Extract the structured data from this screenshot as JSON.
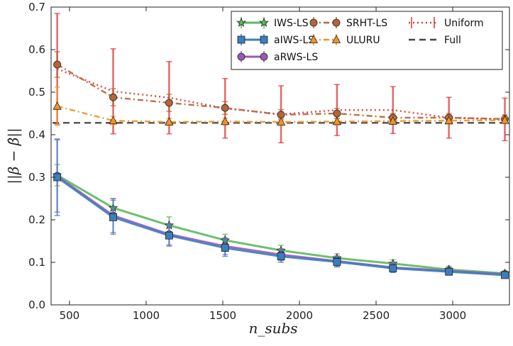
{
  "chart_data": {
    "type": "line",
    "xlabel": "n_subs",
    "ylabel": "||β − β̂||",
    "xlim": [
      380,
      3370
    ],
    "ylim": [
      0,
      0.7
    ],
    "xticks": [
      500,
      1000,
      1500,
      2000,
      2500,
      3000
    ],
    "yticks": [
      0.0,
      0.1,
      0.2,
      0.3,
      0.4,
      0.5,
      0.6,
      0.7
    ],
    "x": [
      420,
      785,
      1150,
      1515,
      1880,
      2245,
      2610,
      2975,
      3340
    ],
    "legend_position": "top-right",
    "series": [
      {
        "name": "IWS-LS",
        "color": "#5cb85c",
        "linestyle": "solid",
        "marker": "star",
        "values": [
          0.305,
          0.228,
          0.187,
          0.152,
          0.128,
          0.11,
          0.097,
          0.083,
          0.074
        ],
        "errors": [
          0.025,
          0.022,
          0.02,
          0.014,
          0.012,
          0.01,
          0.009,
          0.008,
          0.006
        ]
      },
      {
        "name": "aIWS-LS",
        "color": "#3a7ebf",
        "linestyle": "solid",
        "marker": "square",
        "values": [
          0.3,
          0.206,
          0.163,
          0.134,
          0.114,
          0.101,
          0.086,
          0.078,
          0.07
        ],
        "errors": [
          0.09,
          0.04,
          0.025,
          0.02,
          0.014,
          0.012,
          0.01,
          0.008,
          0.006
        ]
      },
      {
        "name": "aRWS-LS",
        "color": "#9b59b6",
        "linestyle": "solid",
        "marker": "circle",
        "values": [
          0.303,
          0.21,
          0.166,
          0.138,
          0.118,
          0.103,
          0.088,
          0.08,
          0.072
        ],
        "errors": [
          0.085,
          0.04,
          0.025,
          0.02,
          0.014,
          0.012,
          0.01,
          0.008,
          0.006
        ]
      },
      {
        "name": "SRHT-LS",
        "color": "#b5653a",
        "linestyle": "dashdot",
        "marker": "circle",
        "values": [
          0.565,
          0.488,
          0.475,
          0.463,
          0.447,
          0.45,
          0.44,
          0.44,
          0.437
        ],
        "errors": [
          0.03,
          0.02,
          0.02,
          0.015,
          0.012,
          0.012,
          0.01,
          0.01,
          0.01
        ]
      },
      {
        "name": "ULURU",
        "color": "#f0932b",
        "linestyle": "dashdot",
        "marker": "triangle",
        "values": [
          0.467,
          0.433,
          0.43,
          0.431,
          0.43,
          0.431,
          0.432,
          0.433,
          0.434
        ],
        "errors": [
          0.045,
          0.01,
          0.008,
          0.008,
          0.008,
          0.008,
          0.008,
          0.008,
          0.008
        ]
      },
      {
        "name": "Uniform",
        "color": "#d9383a",
        "linestyle": "dotted",
        "marker": "none",
        "values": [
          0.555,
          0.502,
          0.487,
          0.462,
          0.448,
          0.458,
          0.458,
          0.44,
          0.436
        ],
        "errors": [
          0.13,
          0.1,
          0.085,
          0.07,
          0.067,
          0.06,
          0.055,
          0.048,
          0.05
        ]
      },
      {
        "name": "Full",
        "color": "#444444",
        "linestyle": "dashed",
        "marker": "none",
        "values": [
          0.428,
          0.428,
          0.428,
          0.428,
          0.428,
          0.428,
          0.428,
          0.428,
          0.428
        ],
        "errors": null
      }
    ]
  }
}
